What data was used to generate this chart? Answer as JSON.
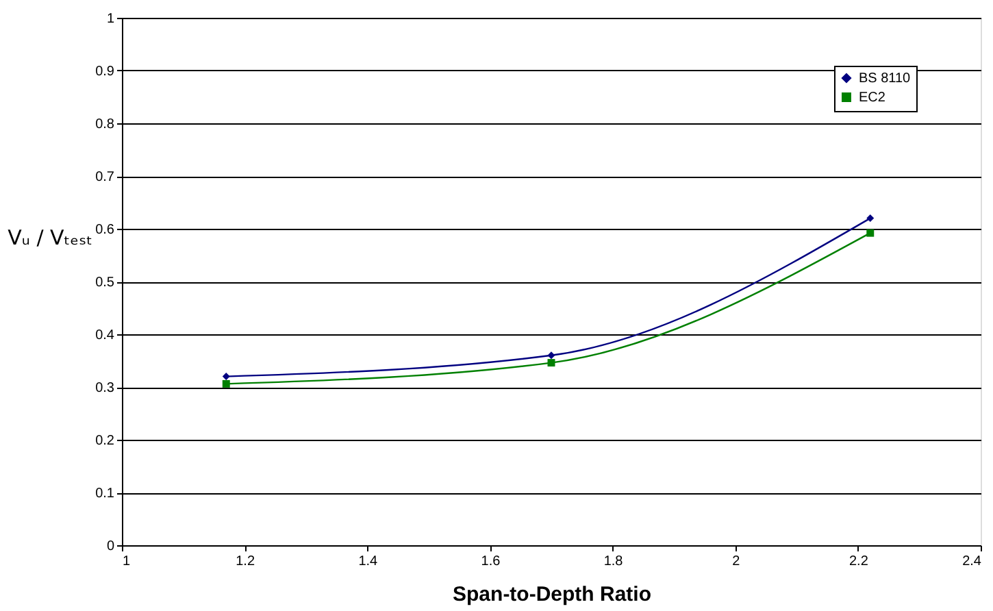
{
  "chart_data": {
    "type": "line",
    "xlabel": "Span-to-Depth Ratio",
    "ylabel": "Vᵤ / Vₜₑₛₜ",
    "xlim": [
      1,
      2.4
    ],
    "xticks": [
      1,
      1.2,
      1.4,
      1.6,
      1.8,
      2,
      2.2,
      2.4
    ],
    "ylim": [
      0,
      1
    ],
    "yticks": [
      0,
      0.1,
      0.2,
      0.3,
      0.4,
      0.5,
      0.6,
      0.7,
      0.8,
      0.9,
      1
    ],
    "line_style": "solid",
    "grid": "y",
    "legend": "top right",
    "series": [
      {
        "name": "BS 8110",
        "color": "#000080",
        "marker": "diamond",
        "x": [
          1.17,
          1.7,
          2.22
        ],
        "values": [
          0.32,
          0.36,
          0.62
        ]
      },
      {
        "name": "EC2",
        "color": "#008000",
        "marker": "square",
        "x": [
          1.17,
          1.7,
          2.22
        ],
        "values": [
          0.306,
          0.346,
          0.592
        ]
      }
    ]
  }
}
